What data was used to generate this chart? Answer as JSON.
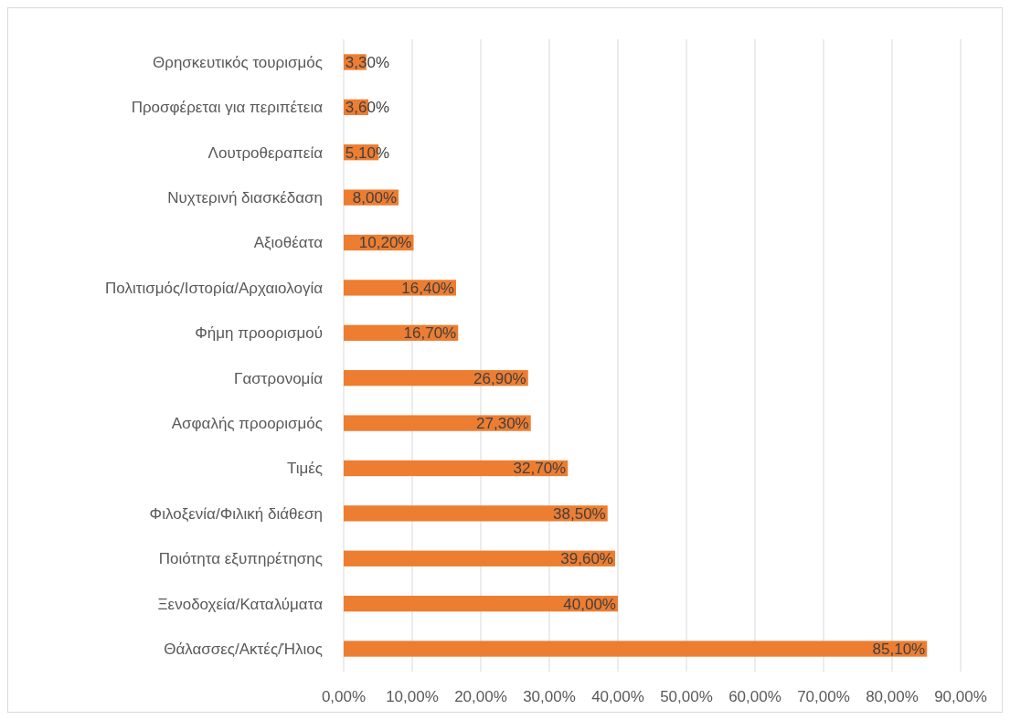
{
  "chart_data": {
    "type": "bar",
    "orientation": "horizontal",
    "categories": [
      "Θρησκευτικός τουρισμός",
      "Προσφέρεται για περιπέτεια",
      "Λουτροθεραπεία",
      "Νυχτερινή διασκέδαση",
      "Αξιοθέατα",
      "Πολιτισμός/Ιστορία/Αρχαιολογία",
      "Φήμη προορισμού",
      "Γαστρονομία",
      "Ασφαλής προορισμός",
      "Τιμές",
      "Φιλοξενία/Φιλική διάθεση",
      "Ποιότητα εξυπηρέτησης",
      "Ξενοδοχεία/Καταλύματα",
      "Θάλασσες/Ακτές/Ήλιος"
    ],
    "values": [
      3.3,
      3.6,
      5.1,
      8.0,
      10.2,
      16.4,
      16.7,
      26.9,
      27.3,
      32.7,
      38.5,
      39.6,
      40.0,
      85.1
    ],
    "value_labels": [
      "3,30%",
      "3,60%",
      "5,10%",
      "8,00%",
      "10,20%",
      "16,40%",
      "16,70%",
      "26,90%",
      "27,30%",
      "32,70%",
      "38,50%",
      "39,60%",
      "40,00%",
      "85,10%"
    ],
    "color": "#ed7d31",
    "xlim": [
      0,
      90
    ],
    "xticks": [
      {
        "value": 0,
        "label": "0,00%"
      },
      {
        "value": 10,
        "label": "10,00%"
      },
      {
        "value": 20,
        "label": "20,00%"
      },
      {
        "value": 30,
        "label": "30,00%"
      },
      {
        "value": 40,
        "label": "40,00%"
      },
      {
        "value": 50,
        "label": "50,00%"
      },
      {
        "value": 60,
        "label": "60,00%"
      },
      {
        "value": 70,
        "label": "70,00%"
      },
      {
        "value": 80,
        "label": "80,00%"
      },
      {
        "value": 90,
        "label": "90,00%"
      }
    ],
    "grid": "x"
  }
}
